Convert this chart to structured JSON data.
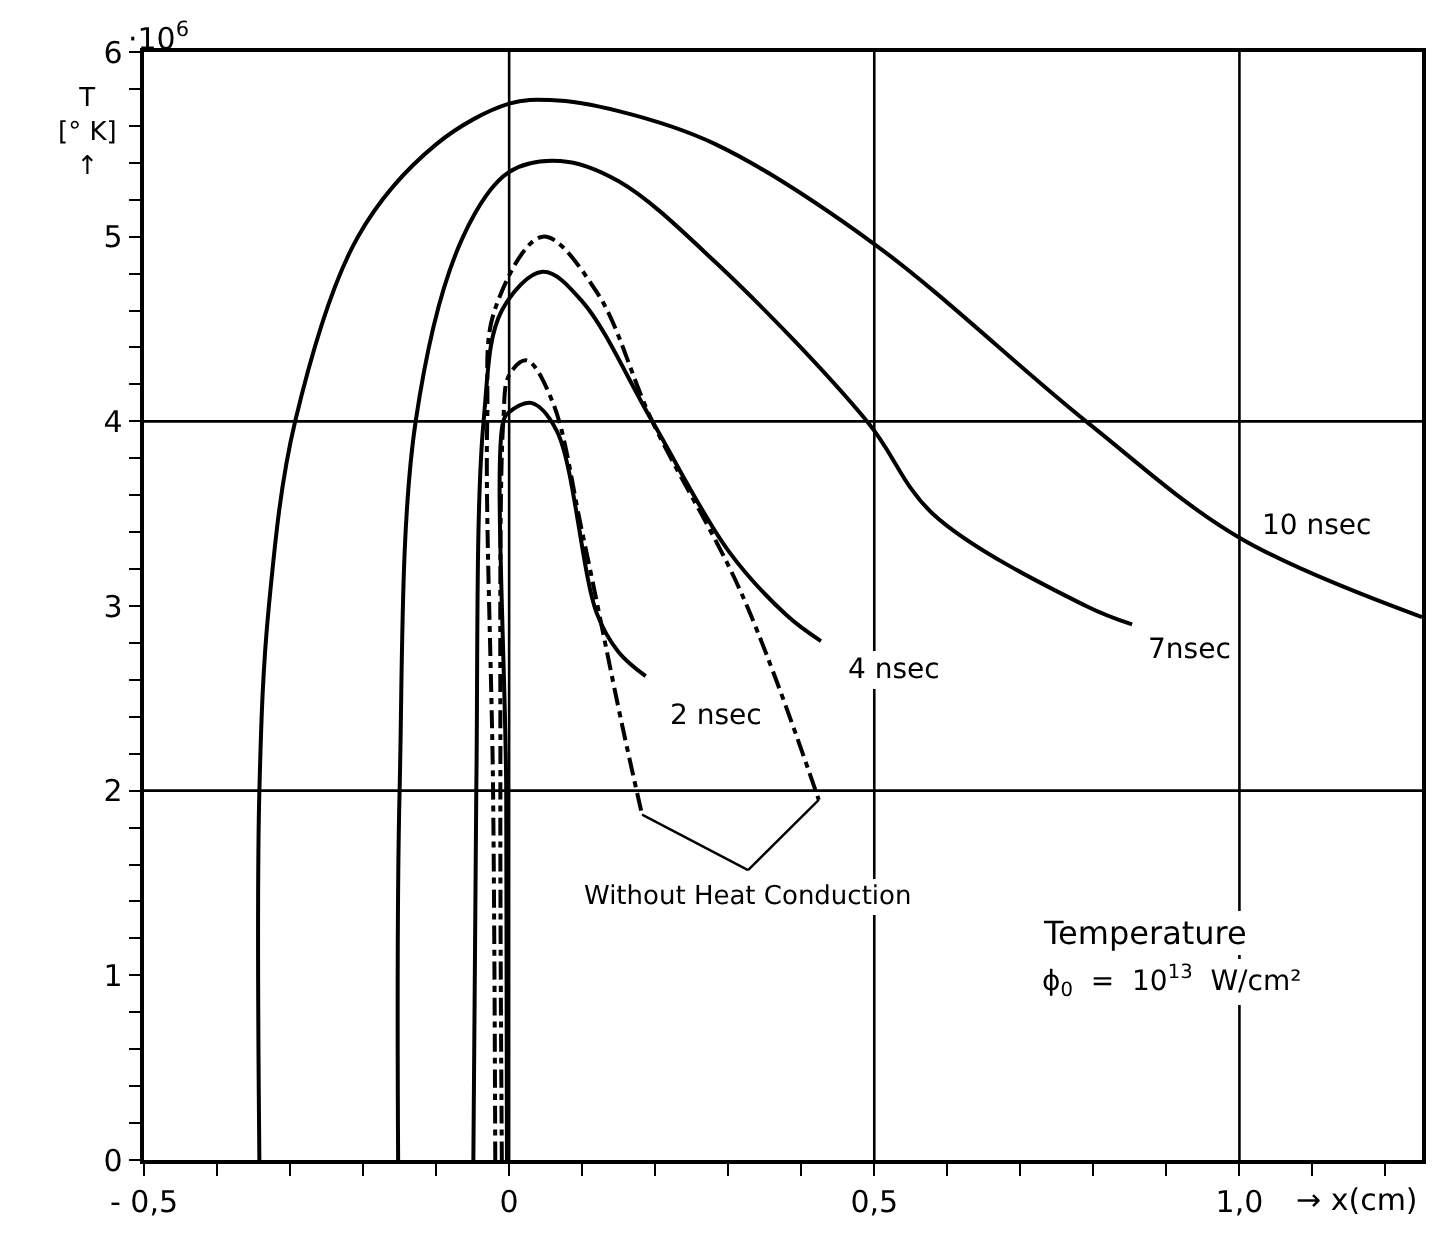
{
  "chart_data": {
    "type": "line",
    "xlabel": "→ x(cm)",
    "ylabel": "T\n[° K]\n↑",
    "series": [
      {
        "name": "10 nsec",
        "color": "#000000",
        "line_style": "solid",
        "x": [
          -0.342,
          -0.342,
          -0.329,
          -0.293,
          -0.207,
          -0.1,
          0.0,
          0.057,
          0.15,
          0.283,
          0.5,
          0.79,
          1.0,
          1.25
        ],
        "values": [
          0,
          2,
          3,
          4,
          5,
          5.5,
          5.72,
          5.74,
          5.68,
          5.5,
          4.96,
          4.0,
          3.37,
          2.94
        ]
      },
      {
        "name": "7nsec",
        "color": "#000000",
        "line_style": "solid",
        "x": [
          -0.152,
          -0.15,
          -0.128,
          -0.063,
          0.0,
          0.07,
          0.15,
          0.283,
          0.49,
          0.58,
          0.79,
          0.853
        ],
        "values": [
          0,
          2,
          4,
          5,
          5.35,
          5.41,
          5.3,
          4.86,
          4.0,
          3.5,
          3.0,
          2.9
        ]
      },
      {
        "name": "4 nsec",
        "color": "#000000",
        "line_style": "solid",
        "x": [
          -0.049,
          -0.045,
          -0.035,
          -0.01,
          0.046,
          0.1,
          0.196,
          0.3,
          0.38,
          0.427
        ],
        "values": [
          0,
          2,
          4,
          4.6,
          4.81,
          4.65,
          4.0,
          3.3,
          2.95,
          2.81
        ]
      },
      {
        "name": "2 nsec",
        "color": "#000000",
        "line_style": "solid",
        "x": [
          -0.003,
          -0.004,
          -0.008,
          0.0,
          0.03,
          0.065,
          0.12,
          0.15,
          0.187
        ],
        "values": [
          0,
          2,
          4,
          4.05,
          4.1,
          3.95,
          2.96,
          2.75,
          2.62
        ]
      },
      {
        "color": "#000000",
        "line_style": "dashdot",
        "x": [
          -0.019,
          -0.022,
          -0.03,
          -0.02,
          0.046,
          0.12,
          0.196,
          0.318,
          0.424
        ],
        "values": [
          0,
          2,
          4,
          4.6,
          5.0,
          4.7,
          4.0,
          3.07,
          1.95
        ]
      },
      {
        "color": "#000000",
        "line_style": "dashdot",
        "x": [
          -0.01,
          -0.012,
          -0.008,
          0.0,
          0.024,
          0.06,
          0.1,
          0.155,
          0.182
        ],
        "values": [
          0,
          2,
          4,
          4.25,
          4.33,
          4.1,
          3.4,
          2.35,
          1.87
        ]
      }
    ],
    "xlim": [
      -0.5,
      1.25
    ],
    "ylim": [
      0,
      6
    ],
    "xticks": [
      {
        "value": -0.5,
        "label": "- 0,5"
      },
      {
        "value": -0.4,
        "label": null
      },
      {
        "value": -0.3,
        "label": null
      },
      {
        "value": -0.2,
        "label": null
      },
      {
        "value": -0.1,
        "label": null
      },
      0,
      {
        "value": 0.1,
        "label": null
      },
      {
        "value": 0.2,
        "label": null
      },
      {
        "value": 0.3,
        "label": null
      },
      {
        "value": 0.4,
        "label": null
      },
      {
        "value": 0.5,
        "label": "0,5"
      },
      {
        "value": 0.6,
        "label": null
      },
      {
        "value": 0.7,
        "label": null
      },
      {
        "value": 0.8,
        "label": null
      },
      {
        "value": 0.9,
        "label": null
      },
      {
        "value": 1.0,
        "label": "1,0"
      },
      {
        "value": 1.1,
        "label": null
      },
      {
        "value": 1.2,
        "label": null
      }
    ],
    "yticks": [
      0,
      {
        "value": 0.2,
        "label": null
      },
      {
        "value": 0.4,
        "label": null
      },
      {
        "value": 0.6,
        "label": null
      },
      {
        "value": 0.8,
        "label": null
      },
      1,
      {
        "value": 1.2,
        "label": null
      },
      {
        "value": 1.4,
        "label": null
      },
      {
        "value": 1.6,
        "label": null
      },
      {
        "value": 1.8,
        "label": null
      },
      2,
      {
        "value": 2.2,
        "label": null
      },
      {
        "value": 2.4,
        "label": null
      },
      {
        "value": 2.6,
        "label": null
      },
      {
        "value": 2.8,
        "label": null
      },
      3,
      {
        "value": 3.2,
        "label": null
      },
      {
        "value": 3.4,
        "label": null
      },
      {
        "value": 3.6,
        "label": null
      },
      {
        "value": 3.8,
        "label": null
      },
      4,
      {
        "value": 4.2,
        "label": null
      },
      {
        "value": 4.4,
        "label": null
      },
      {
        "value": 4.6,
        "label": null
      },
      {
        "value": 4.8,
        "label": null
      },
      5,
      {
        "value": 5.2,
        "label": null
      },
      {
        "value": 5.4,
        "label": null
      },
      {
        "value": 5.6,
        "label": null
      },
      {
        "value": 5.8,
        "label": null
      },
      6
    ],
    "ref_lines": [
      {
        "axis": "x",
        "value": 0
      },
      {
        "axis": "x",
        "value": 0.5
      },
      {
        "axis": "x",
        "value": 1.0
      },
      {
        "axis": "y",
        "value": 2
      },
      {
        "axis": "y",
        "value": 4
      }
    ],
    "annotations": [
      "·10$^{6}$",
      {
        "text": "Without Heat Conduction",
        "x": 0.424,
        "y": 1.95
      },
      "Temperature",
      "ϕ$_{0}$  =  10$^{13}$  W/cm²"
    ],
    "legend": false,
    "marker": "none",
    "grid": false
  }
}
